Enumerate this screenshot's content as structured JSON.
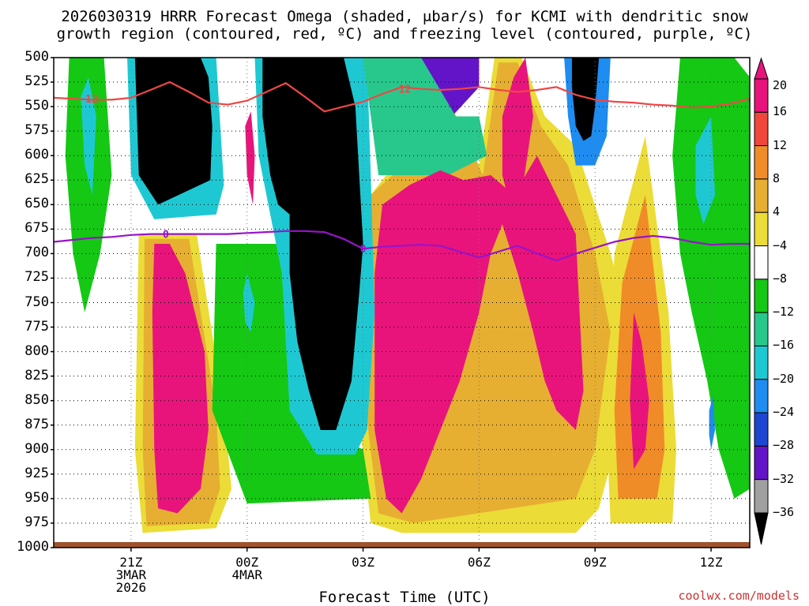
{
  "title_line1": "2026030319 HRRR Forecast Omega (shaded, μbar/s) for KCMI with dendritic snow",
  "title_line2": "growth region (contoured, red, ºC) and freezing level (contoured, purple, ºC)",
  "credit": "coolwx.com/models",
  "colors": {
    "positive_20": "#e8147c",
    "positive_16": "#f0463c",
    "positive_12": "#f08c28",
    "positive_8": "#e6af32",
    "positive_4": "#ebdc37",
    "neutral": "#ffffff",
    "neg_8": "#14c814",
    "neg_12": "#28c88c",
    "neg_16": "#1ec8d2",
    "neg_20": "#1e8cf0",
    "neg_24": "#1e46d2",
    "neg_28": "#6414c8",
    "neg_32": "#a014c8",
    "neg_36": "#a0a0a0",
    "below": "#000000",
    "dgz_line": "#f04646",
    "freezing_line": "#9614c8",
    "ground": "#a0522d"
  },
  "chart_data": {
    "type": "heatmap",
    "title": "2026030319 HRRR Forecast Omega (shaded, μbar/s) for KCMI with dendritic snow growth region (contoured, red, ºC) and freezing level (contoured, purple, ºC)",
    "xlabel": "Forecast Time (UTC)",
    "ylabel": "",
    "x_tick_labels": [
      {
        "hour": 21,
        "lines": [
          "21Z",
          "3MAR",
          "2026"
        ]
      },
      {
        "hour": 24,
        "lines": [
          "00Z",
          "4MAR"
        ]
      },
      {
        "hour": 27,
        "lines": [
          "03Z"
        ]
      },
      {
        "hour": 30,
        "lines": [
          "06Z"
        ]
      },
      {
        "hour": 33,
        "lines": [
          "09Z"
        ]
      },
      {
        "hour": 36,
        "lines": [
          "12Z"
        ]
      }
    ],
    "xlim": [
      19,
      37
    ],
    "y_ticks": [
      500,
      525,
      550,
      575,
      600,
      625,
      650,
      675,
      700,
      725,
      750,
      775,
      800,
      825,
      850,
      875,
      900,
      925,
      950,
      975,
      1000
    ],
    "ylim": [
      1000,
      500
    ],
    "colorbar_levels": [
      20,
      16,
      12,
      8,
      4,
      -4,
      -8,
      -12,
      -16,
      -20,
      -24,
      -28,
      -32,
      -36
    ],
    "grid": true,
    "contour_dgz_minus12C": {
      "label": "-12",
      "x": [
        19.0,
        19.5,
        20.0,
        20.5,
        21.0,
        21.5,
        22.0,
        22.5,
        23.0,
        23.5,
        24.0,
        24.5,
        25.0,
        25.5,
        26.0,
        26.5,
        27.0,
        27.5,
        28.0,
        28.5,
        29.0,
        29.5,
        30.0,
        30.5,
        31.0,
        31.5,
        32.0,
        32.5,
        33.0,
        33.5,
        34.0,
        34.5,
        35.0,
        35.5,
        36.0,
        36.5,
        37.0
      ],
      "y": [
        541,
        542,
        543,
        543,
        541,
        533,
        525,
        535,
        546,
        548,
        544,
        535,
        526,
        540,
        555,
        550,
        545,
        537,
        530,
        532,
        533,
        532,
        530,
        533,
        535,
        533,
        530,
        538,
        543,
        545,
        546,
        548,
        549,
        551,
        550,
        547,
        542
      ]
    },
    "contour_freezing_0C": {
      "label": "0",
      "x": [
        19.0,
        19.5,
        20.0,
        20.5,
        21.0,
        21.5,
        22.0,
        22.5,
        23.0,
        23.5,
        24.0,
        24.5,
        25.0,
        25.5,
        26.0,
        26.5,
        27.0,
        27.5,
        28.0,
        28.5,
        29.0,
        29.5,
        30.0,
        30.5,
        31.0,
        31.5,
        32.0,
        32.5,
        33.0,
        33.5,
        34.0,
        34.5,
        35.0,
        35.5,
        36.0,
        36.5,
        37.0
      ],
      "y": [
        688,
        686,
        684,
        683,
        681,
        680,
        680,
        680,
        680,
        680,
        679,
        678,
        677,
        677,
        678,
        685,
        695,
        693,
        692,
        691,
        692,
        698,
        704,
        698,
        692,
        700,
        707,
        700,
        694,
        688,
        684,
        682,
        684,
        688,
        691,
        690,
        690
      ]
    },
    "bands": [
      {
        "name": "black-column-left",
        "level": "below-36",
        "x": [
          21.1,
          21.4,
          21.8,
          22.3,
          22.8,
          23.0,
          23.1,
          23.05,
          21.7,
          21.2
        ],
        "y": [
          500,
          500,
          500,
          500,
          500,
          520,
          570,
          625,
          650,
          620
        ]
      },
      {
        "name": "black-column-center",
        "level": "below-36",
        "x": [
          24.4,
          25.0,
          25.8,
          26.5,
          26.8,
          26.9,
          27.0,
          26.9,
          26.7,
          26.3,
          25.9,
          25.6,
          25.3,
          25.1,
          25.1,
          24.8,
          24.6,
          24.4
        ],
        "y": [
          500,
          500,
          500,
          500,
          550,
          620,
          690,
          740,
          830,
          880,
          880,
          840,
          790,
          720,
          660,
          650,
          620,
          560
        ]
      },
      {
        "name": "black-column-right",
        "level": "below-36",
        "x": [
          32.7,
          33.1,
          33.0,
          32.9,
          32.7,
          32.5,
          32.4,
          32.4
        ],
        "y": [
          500,
          500,
          550,
          580,
          585,
          570,
          530,
          500
        ]
      },
      {
        "name": "pink-core-left",
        "level": "20",
        "x": [
          21.6,
          22.0,
          22.4,
          22.9,
          23.0,
          22.8,
          22.2,
          21.7,
          21.6,
          21.55
        ],
        "y": [
          690,
          690,
          720,
          800,
          880,
          940,
          965,
          960,
          900,
          760
        ]
      },
      {
        "name": "pink-core-center",
        "level": "20",
        "x": [
          27.5,
          28.2,
          29.0,
          29.6,
          30.3,
          30.9,
          31.5,
          32.0,
          32.5,
          32.6,
          32.7,
          32.5,
          32.0,
          31.7,
          31.4,
          31.0,
          30.6,
          30.3,
          30.0,
          29.5,
          29.0,
          28.5,
          28.0,
          27.6,
          27.3,
          27.3
        ],
        "y": [
          650,
          630,
          615,
          625,
          620,
          640,
          600,
          640,
          680,
          760,
          840,
          880,
          860,
          830,
          780,
          720,
          670,
          700,
          760,
          830,
          880,
          930,
          965,
          950,
          880,
          720
        ]
      },
      {
        "name": "pink-core-upper-mid",
        "level": "20",
        "x": [
          30.6,
          30.9,
          31.2,
          31.4,
          31.1,
          30.8,
          30.6
        ],
        "y": [
          560,
          520,
          500,
          560,
          640,
          650,
          620
        ]
      },
      {
        "name": "pink-core-right",
        "level": "20",
        "x": [
          34.0,
          34.2,
          34.4,
          34.3,
          34.0,
          33.9
        ],
        "y": [
          760,
          790,
          850,
          900,
          920,
          850
        ]
      },
      {
        "name": "pink-sliver-midnight",
        "level": "20",
        "x": [
          23.95,
          24.1,
          24.2,
          24.15,
          24.0
        ],
        "y": [
          570,
          555,
          600,
          650,
          620
        ]
      },
      {
        "name": "cyan-core-left",
        "level": "-16",
        "x": [
          19.7,
          19.9,
          20.1,
          20.0,
          19.8
        ],
        "y": [
          540,
          520,
          560,
          640,
          610
        ]
      },
      {
        "name": "cyan-core-midnight",
        "level": "-16",
        "x": [
          23.9,
          24.0,
          24.2,
          24.1,
          23.95
        ],
        "y": [
          740,
          720,
          750,
          780,
          770
        ]
      },
      {
        "name": "cyan-core-right",
        "level": "-16",
        "x": [
          35.6,
          36.0,
          36.1,
          35.8,
          35.6
        ],
        "y": [
          590,
          560,
          640,
          670,
          640
        ]
      },
      {
        "name": "blue-core-12z",
        "level": "-20",
        "x": [
          35.95,
          36.05,
          36.1,
          36.0,
          35.95
        ],
        "y": [
          860,
          845,
          880,
          900,
          885
        ]
      }
    ]
  }
}
